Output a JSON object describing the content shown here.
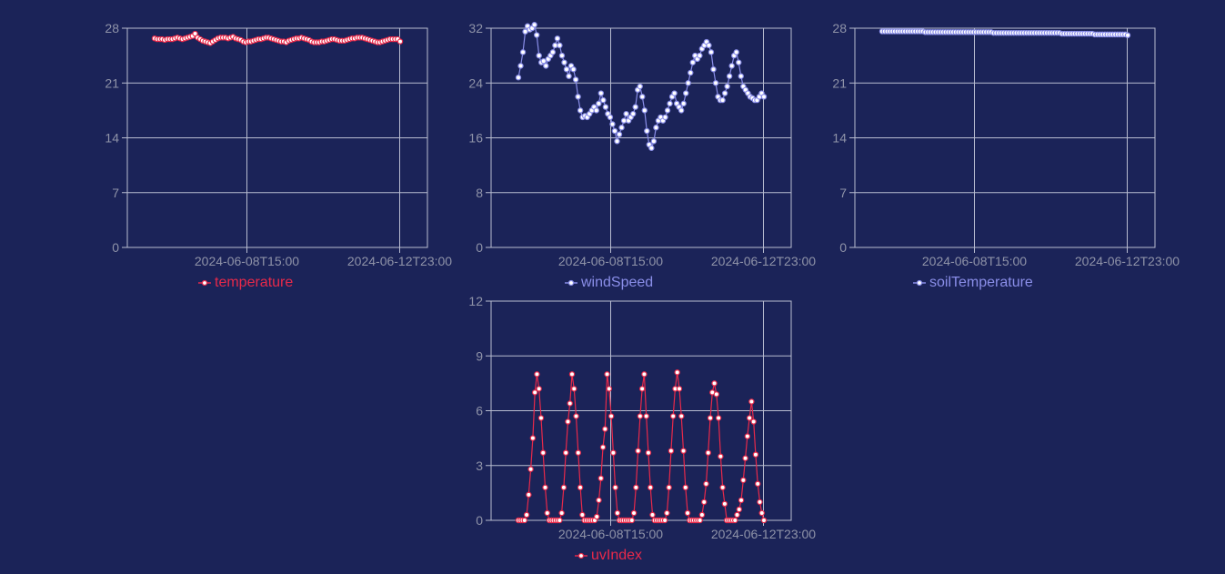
{
  "chart_data": [
    {
      "id": "temperature",
      "type": "line",
      "series": [
        {
          "name": "temperature",
          "color": "#e8294a",
          "values": [
            26.7,
            26.6,
            26.6,
            26.6,
            26.5,
            26.6,
            26.6,
            26.6,
            26.7,
            26.8,
            26.7,
            26.6,
            26.7,
            26.8,
            26.9,
            27.0,
            27.3,
            26.8,
            26.6,
            26.4,
            26.3,
            26.2,
            26.1,
            26.3,
            26.5,
            26.7,
            26.8,
            26.8,
            26.8,
            26.7,
            26.8,
            26.9,
            26.7,
            26.6,
            26.5,
            26.3,
            26.2,
            26.3,
            26.3,
            26.4,
            26.5,
            26.6,
            26.6,
            26.7,
            26.8,
            26.8,
            26.7,
            26.6,
            26.5,
            26.4,
            26.3,
            26.3,
            26.2,
            26.4,
            26.5,
            26.6,
            26.7,
            26.7,
            26.8,
            26.7,
            26.6,
            26.5,
            26.3,
            26.2,
            26.2,
            26.2,
            26.3,
            26.3,
            26.4,
            26.5,
            26.6,
            26.6,
            26.5,
            26.4,
            26.4,
            26.4,
            26.5,
            26.6,
            26.7,
            26.7,
            26.8,
            26.8,
            26.8,
            26.7,
            26.6,
            26.5,
            26.4,
            26.3,
            26.2,
            26.2,
            26.3,
            26.4,
            26.5,
            26.6,
            26.6,
            26.6,
            26.6,
            26.3
          ]
        }
      ],
      "x_ticks": [
        "2024-06-08T15:00",
        "2024-06-12T23:00"
      ],
      "ylim": [
        0,
        28
      ],
      "y_ticks": [
        0,
        7,
        14,
        21,
        28
      ]
    },
    {
      "id": "windSpeed",
      "type": "line",
      "series": [
        {
          "name": "windSpeed",
          "color": "#8a8ee8",
          "values": [
            24.8,
            26.5,
            28.5,
            31.5,
            32.3,
            31.8,
            32.0,
            32.5,
            31.0,
            28.0,
            27.0,
            27.2,
            26.5,
            27.5,
            28.0,
            28.5,
            29.5,
            30.5,
            29.5,
            28.0,
            27.0,
            26.0,
            25.0,
            26.5,
            26.0,
            24.5,
            22.0,
            20.0,
            19.0,
            19.2,
            19.0,
            19.5,
            20.0,
            20.5,
            20.0,
            21.0,
            22.5,
            21.5,
            20.5,
            19.5,
            19.0,
            18.0,
            17.0,
            15.5,
            16.5,
            17.5,
            18.5,
            19.5,
            18.5,
            19.0,
            19.5,
            20.5,
            23.0,
            23.5,
            22.0,
            20.0,
            17.0,
            15.0,
            14.5,
            15.5,
            17.5,
            18.5,
            19.0,
            18.5,
            19.0,
            20.0,
            21.0,
            22.0,
            22.5,
            21.0,
            20.5,
            20.0,
            21.0,
            22.5,
            24.0,
            25.5,
            27.0,
            28.0,
            27.5,
            28.0,
            29.0,
            29.5,
            30.0,
            29.5,
            28.5,
            26.0,
            24.0,
            22.0,
            21.5,
            21.5,
            22.5,
            23.5,
            25.0,
            26.5,
            28.0,
            28.5,
            27.0,
            25.0,
            23.5,
            23.0,
            22.5,
            22.0,
            21.8,
            21.5,
            21.5,
            22.0,
            22.5,
            22.0
          ]
        }
      ],
      "x_ticks": [
        "2024-06-08T15:00",
        "2024-06-12T23:00"
      ],
      "ylim": [
        0,
        32
      ],
      "y_ticks": [
        0,
        8,
        16,
        24,
        32
      ]
    },
    {
      "id": "soilTemperature",
      "type": "line",
      "series": [
        {
          "name": "soilTemperature",
          "color": "#8a8ee8",
          "values": [
            27.6,
            27.6,
            27.6,
            27.6,
            27.6,
            27.6,
            27.6,
            27.6,
            27.6,
            27.6,
            27.6,
            27.6,
            27.6,
            27.6,
            27.6,
            27.6,
            27.6,
            27.5,
            27.5,
            27.5,
            27.5,
            27.5,
            27.5,
            27.5,
            27.5,
            27.5,
            27.5,
            27.5,
            27.5,
            27.5,
            27.5,
            27.5,
            27.5,
            27.5,
            27.5,
            27.5,
            27.5,
            27.5,
            27.5,
            27.5,
            27.5,
            27.5,
            27.5,
            27.5,
            27.4,
            27.4,
            27.4,
            27.4,
            27.4,
            27.4,
            27.4,
            27.4,
            27.4,
            27.4,
            27.4,
            27.4,
            27.4,
            27.4,
            27.4,
            27.4,
            27.4,
            27.4,
            27.4,
            27.4,
            27.4,
            27.4,
            27.4,
            27.4,
            27.4,
            27.4,
            27.4,
            27.3,
            27.3,
            27.3,
            27.3,
            27.3,
            27.3,
            27.3,
            27.3,
            27.3,
            27.3,
            27.3,
            27.3,
            27.3,
            27.2,
            27.2,
            27.2,
            27.2,
            27.2,
            27.2,
            27.2,
            27.2,
            27.2,
            27.2,
            27.2,
            27.2,
            27.2,
            27.1
          ]
        }
      ],
      "x_ticks": [
        "2024-06-08T15:00",
        "2024-06-12T23:00"
      ],
      "ylim": [
        0,
        28
      ],
      "y_ticks": [
        0,
        7,
        14,
        21,
        28
      ]
    },
    {
      "id": "uvIndex",
      "type": "line",
      "series": [
        {
          "name": "uvIndex",
          "color": "#e8294a",
          "values": [
            0,
            0,
            0,
            0,
            0.3,
            1.4,
            2.8,
            4.5,
            7.0,
            8.0,
            7.2,
            5.6,
            3.7,
            1.8,
            0.4,
            0,
            0,
            0,
            0,
            0,
            0,
            0.4,
            1.8,
            3.7,
            5.4,
            6.4,
            8.0,
            7.2,
            5.7,
            3.7,
            1.8,
            0.3,
            0,
            0,
            0,
            0,
            0,
            0,
            0.2,
            1.1,
            2.3,
            4.0,
            5.0,
            8.0,
            7.2,
            5.7,
            3.7,
            1.8,
            0.4,
            0,
            0,
            0,
            0,
            0,
            0,
            0,
            0.4,
            1.8,
            3.8,
            5.7,
            7.2,
            8.0,
            5.7,
            3.7,
            1.8,
            0.3,
            0,
            0,
            0,
            0,
            0,
            0,
            0.4,
            1.8,
            3.8,
            5.7,
            7.2,
            8.1,
            7.2,
            5.7,
            3.8,
            1.8,
            0.4,
            0,
            0,
            0,
            0,
            0,
            0,
            0.3,
            1.0,
            2.0,
            3.7,
            5.6,
            7.0,
            7.5,
            6.9,
            5.6,
            3.5,
            1.8,
            0.9,
            0,
            0,
            0,
            0,
            0,
            0.3,
            0.6,
            1.1,
            2.2,
            3.4,
            4.6,
            5.6,
            6.5,
            5.4,
            3.6,
            2.0,
            1.0,
            0.4,
            0
          ]
        }
      ],
      "x_ticks": [
        "2024-06-08T15:00",
        "2024-06-12T23:00"
      ],
      "ylim": [
        0,
        12
      ],
      "y_ticks": [
        0,
        3,
        6,
        9,
        12
      ]
    }
  ],
  "colors": {
    "background": "#1b2358",
    "grid": "#b8bcd0",
    "tick_text": "#8f93a8",
    "point_fill": "#ffffff"
  }
}
